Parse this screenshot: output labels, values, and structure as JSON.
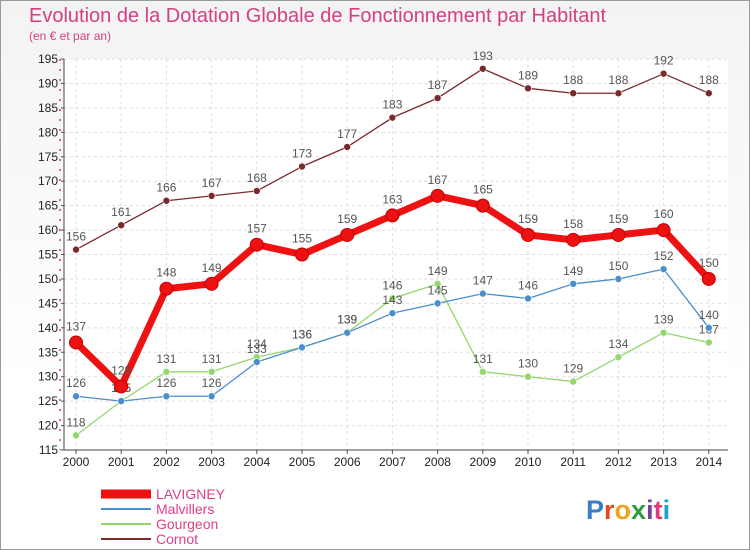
{
  "chart_data": {
    "type": "line",
    "title": "Evolution de la Dotation Globale de Fonctionnement par Habitant",
    "subtitle": "(en € et par an)",
    "x": [
      "2000",
      "2001",
      "2002",
      "2003",
      "2004",
      "2005",
      "2006",
      "2007",
      "2008",
      "2009",
      "2010",
      "2011",
      "2012",
      "2013",
      "2014"
    ],
    "ylim": [
      115,
      195
    ],
    "yticks": [
      115,
      120,
      125,
      130,
      135,
      140,
      145,
      150,
      155,
      160,
      165,
      170,
      175,
      180,
      185,
      190,
      195
    ],
    "grid": true,
    "legend_position": "bottom-left",
    "series": [
      {
        "name": "LAVIGNEY",
        "color": "#ee1111",
        "values": [
          137,
          128,
          148,
          149,
          157,
          155,
          159,
          163,
          167,
          165,
          159,
          158,
          159,
          160,
          150
        ]
      },
      {
        "name": "Malvillers",
        "color": "#4a8fcc",
        "values": [
          126,
          125,
          126,
          126,
          133,
          136,
          139,
          143,
          145,
          147,
          146,
          149,
          150,
          152,
          140
        ]
      },
      {
        "name": "Gourgeon",
        "color": "#95d66d",
        "values": [
          118,
          125,
          131,
          131,
          134,
          136,
          139,
          146,
          149,
          131,
          130,
          129,
          134,
          139,
          137
        ]
      },
      {
        "name": "Cornot",
        "color": "#7a2a2a",
        "values": [
          156,
          161,
          166,
          167,
          168,
          173,
          177,
          183,
          187,
          193,
          189,
          188,
          188,
          192,
          188
        ]
      }
    ]
  },
  "logo": {
    "text": "Proxiti",
    "letters": [
      "P",
      "r",
      "o",
      "x",
      "i",
      "t",
      "i"
    ],
    "colors": [
      "#3a7dc9",
      "#e24b1c",
      "#f2a31b",
      "#2e9c3f",
      "#7b3fa0",
      "#e2387c",
      "#1aa3c9"
    ]
  }
}
